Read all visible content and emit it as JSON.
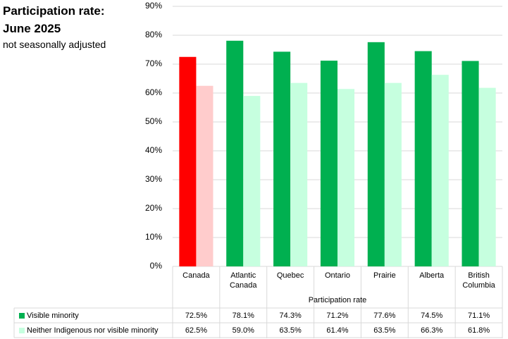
{
  "chart_data": {
    "type": "bar",
    "title": "Participation rate:",
    "subtitle": "June 2025",
    "note": "not seasonally adjusted",
    "xlabel": "Participation rate",
    "categories": [
      "Canada",
      "Atlantic Canada",
      "Quebec",
      "Ontario",
      "Prairie",
      "Alberta",
      "British Columbia"
    ],
    "series": [
      {
        "name": "Visible minority",
        "color": "#00b050",
        "colors": [
          "#ff0000",
          "#00b050",
          "#00b050",
          "#00b050",
          "#00b050",
          "#00b050",
          "#00b050"
        ],
        "values": [
          72.5,
          78.1,
          74.3,
          71.2,
          77.6,
          74.5,
          71.1
        ],
        "value_labels": [
          "72.5%",
          "78.1%",
          "74.3%",
          "71.2%",
          "77.6%",
          "74.5%",
          "71.1%"
        ]
      },
      {
        "name": "Neither Indigenous nor visible minority",
        "color": "#c6ffdf",
        "colors": [
          "#ffcccc",
          "#c6ffdf",
          "#c6ffdf",
          "#c6ffdf",
          "#c6ffdf",
          "#c6ffdf",
          "#c6ffdf"
        ],
        "values": [
          62.5,
          59.0,
          63.5,
          61.4,
          63.5,
          66.3,
          61.8
        ],
        "value_labels": [
          "62.5%",
          "59.0%",
          "63.5%",
          "61.4%",
          "63.5%",
          "66.3%",
          "61.8%"
        ]
      }
    ],
    "ylim": [
      0,
      90
    ],
    "yticks": [
      {
        "value": 0,
        "label": "0%"
      },
      {
        "value": 10,
        "label": "10%"
      },
      {
        "value": 20,
        "label": "20%"
      },
      {
        "value": 30,
        "label": "30%"
      },
      {
        "value": 40,
        "label": "40%"
      },
      {
        "value": 50,
        "label": "50%"
      },
      {
        "value": 60,
        "label": "60%"
      },
      {
        "value": 70,
        "label": "70%"
      },
      {
        "value": 80,
        "label": "80%"
      },
      {
        "value": 90,
        "label": "90%"
      }
    ],
    "grid": true
  }
}
